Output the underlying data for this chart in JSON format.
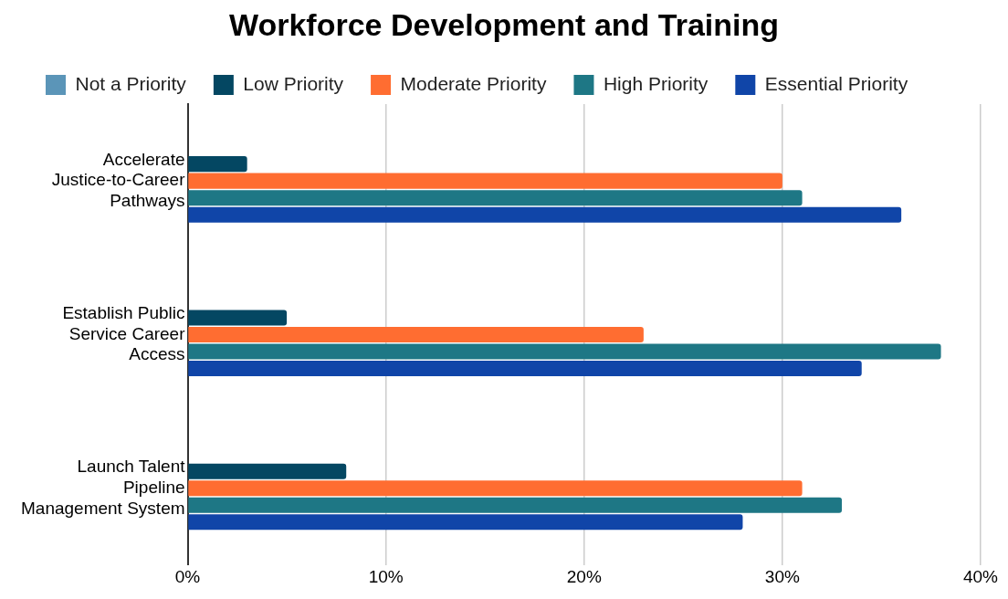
{
  "chart_data": {
    "type": "bar",
    "orientation": "horizontal",
    "title": "Workforce Development and Training",
    "categories": [
      "Accelerate Justice-to-Career Pathways",
      "Establish Public Service Career Access",
      "Launch Talent Pipeline Management System"
    ],
    "series": [
      {
        "name": "Not a Priority",
        "color": "#5b95b8",
        "values": [
          0,
          0,
          0
        ]
      },
      {
        "name": "Low Priority",
        "color": "#044762",
        "values": [
          3,
          5,
          8
        ]
      },
      {
        "name": "Moderate Priority",
        "color": "#ff6d31",
        "values": [
          30,
          23,
          31
        ]
      },
      {
        "name": "High Priority",
        "color": "#1e7785",
        "values": [
          31,
          38,
          33
        ]
      },
      {
        "name": "Essential Priority",
        "color": "#1045a8",
        "values": [
          36,
          34,
          28
        ]
      }
    ],
    "xlim": [
      0,
      40
    ],
    "xticks": [
      {
        "value": 0,
        "label": "0%"
      },
      {
        "value": 10,
        "label": "10%"
      },
      {
        "value": 20,
        "label": "20%"
      },
      {
        "value": 30,
        "label": "30%"
      },
      {
        "value": 40,
        "label": "40%"
      }
    ],
    "grid": "x",
    "legend": "top"
  }
}
